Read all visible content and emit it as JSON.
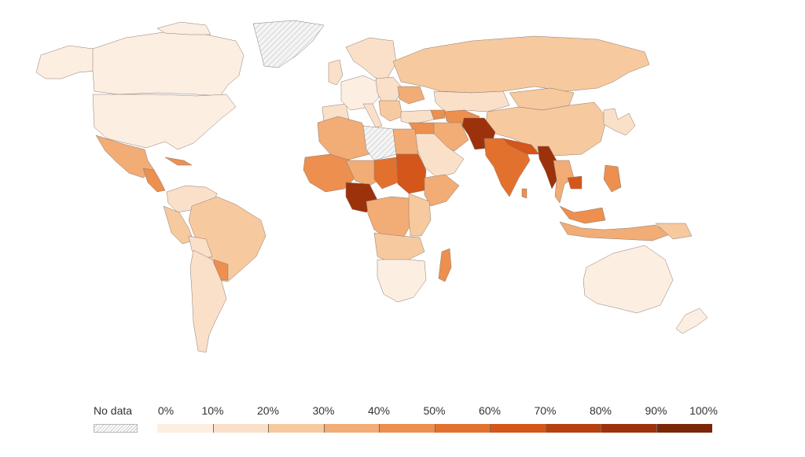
{
  "colors": {
    "bins": [
      "#fdeee2",
      "#fbe0c9",
      "#f7c99f",
      "#f2ac76",
      "#ec8f4f",
      "#e3712e",
      "#d4561a",
      "#b8400f",
      "#9c320b",
      "#7c2608"
    ],
    "no_data": "#e5e5e5",
    "border": "#8a7a70"
  },
  "legend": {
    "no_data_label": "No data",
    "ticks": [
      "0%",
      "10%",
      "20%",
      "30%",
      "40%",
      "50%",
      "60%",
      "70%",
      "80%",
      "90%",
      "100%"
    ]
  }
}
